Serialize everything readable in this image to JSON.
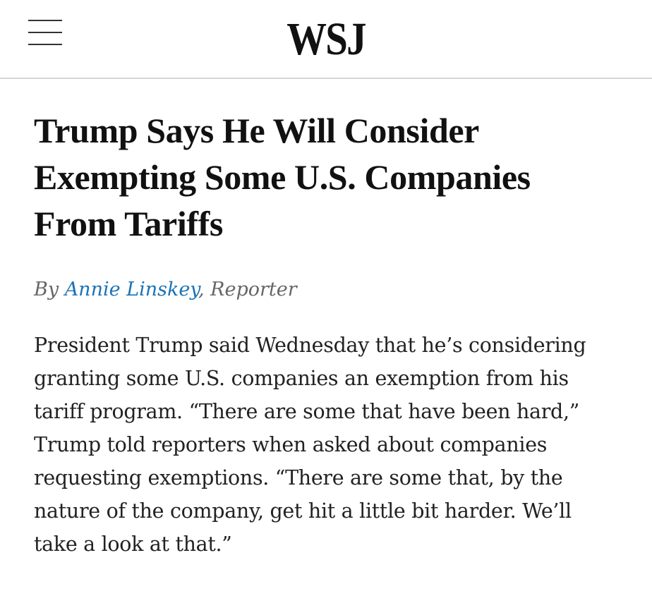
{
  "header": {
    "menu_icon": "hamburger-menu-icon",
    "logo_text": "WSJ"
  },
  "article": {
    "headline": "Trump Says He Will Consider\nExempting Some U.S. Companies\nFrom Tariffs",
    "byline": {
      "prefix": "By ",
      "author": "Annie Linskey",
      "separator": ", ",
      "role": "Reporter"
    },
    "body": "President Trump said Wednesday that he’s considering\ngranting some U.S. companies an exemption from his\ntariff program. “There are some that have been hard,”\nTrump told reporters when asked about companies\nrequesting exemptions. “There are some that, by the\nnature of the company, get hit a little bit harder. We’ll\ntake a look at that.”"
  },
  "colors": {
    "author_link": "#1a73b5",
    "byline_text": "#666666",
    "divider": "#d6d6d6"
  }
}
